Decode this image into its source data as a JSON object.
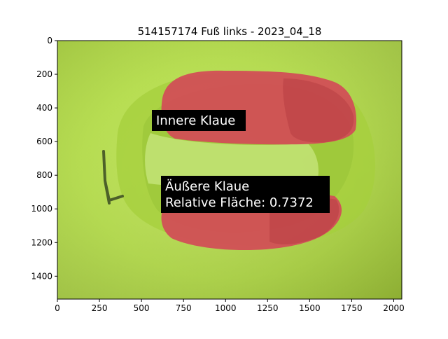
{
  "chart_data": {
    "type": "image",
    "title": "514157174 Fuß links - 2023_04_18",
    "xlabel": "",
    "ylabel": "",
    "xlim": [
      0,
      2048
    ],
    "ylim": [
      1536,
      0
    ],
    "x_ticks": [
      0,
      250,
      500,
      750,
      1000,
      1250,
      1500,
      1750,
      2000
    ],
    "y_ticks": [
      0,
      200,
      400,
      600,
      800,
      1000,
      1200,
      1400
    ],
    "grid": false,
    "annotations": [
      {
        "label": "Innere Klaue",
        "x": 590,
        "y": 470
      },
      {
        "label": "Äußere Klaue",
        "x": 640,
        "y": 860
      },
      {
        "label": "Relative Fläche: 0.7372",
        "x": 640,
        "y": 960
      }
    ],
    "regions": [
      {
        "name": "Innere Klaue",
        "color": "#cf4a55"
      },
      {
        "name": "Äußere Klaue",
        "color": "#cf4a55"
      }
    ],
    "colors": {
      "background_green": "#b6e048",
      "mask_red": "#d24b57",
      "label_box": "#000000",
      "label_text": "#ffffff"
    }
  }
}
